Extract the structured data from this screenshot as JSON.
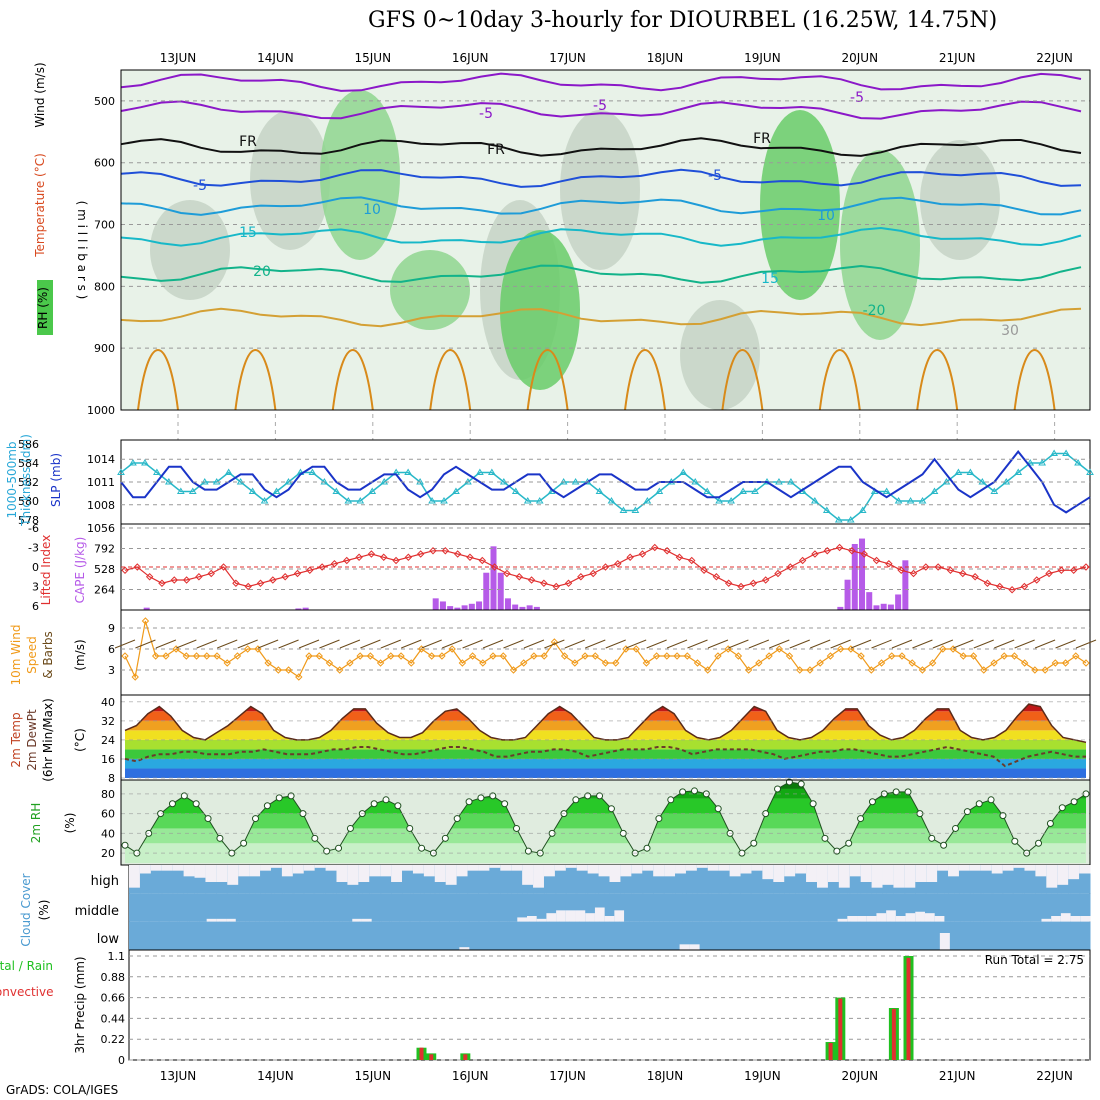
{
  "title": "GFS 0~10day 3-hourly for DIOURBEL (16.25W, 14.75N)",
  "footer": "GrADS: COLA/IGES",
  "date_labels": [
    "13JUN",
    "14JUN",
    "15JUN",
    "16JUN",
    "17JUN",
    "18JUN",
    "19JUN",
    "20JUN",
    "21JUN",
    "22JUN"
  ],
  "panel_labels": {
    "upper": {
      "rh": "RH (%)",
      "temp": "Temperature (°C)",
      "wind": "Wind (m/s)",
      "units": "( m i l l i b a r s )"
    },
    "thickness": {
      "a": "1000-500mb",
      "b": "Thickness (dm)",
      "slp": "SLP (mb)"
    },
    "cape": {
      "li": "Lifted Index",
      "cape": "CAPE (J/kg)"
    },
    "wind10": {
      "a": "10m Wind",
      "b": "Speed",
      "c": "& Barbs",
      "units": "(m/s)"
    },
    "temp2m": {
      "a": "2m Temp",
      "b": "2m DewPt",
      "c": "(6hr Min/Max)",
      "units": "(°C)"
    },
    "rh2m": {
      "a": "2m RH",
      "units": "(%)"
    },
    "cloud": {
      "a": "Cloud Cover",
      "units": "(%)",
      "high": "high",
      "middle": "middle",
      "low": "low"
    },
    "precip": {
      "a": "Total / Rain",
      "b": "Convective",
      "units": "3hr Precip (mm)",
      "run_total": "Run Total = 2.75"
    }
  },
  "chart_data": [
    {
      "type": "heatmap",
      "name_hint": "upper-air cross section",
      "y_axis": {
        "label": "millibars",
        "ticks": [
          500,
          600,
          700,
          800,
          900,
          1000
        ],
        "reversed": true
      },
      "contour_labels": [
        "-5",
        "-5",
        "FR",
        "FR",
        "FR",
        "-5",
        "-5",
        "10",
        "15",
        "20",
        "-5",
        "10",
        "15",
        "-20",
        "30"
      ],
      "isotherms_C": [
        -5,
        0,
        5,
        10,
        15,
        20,
        25,
        30
      ],
      "rh_shading_percent": [
        40,
        60,
        80,
        95
      ]
    },
    {
      "type": "line",
      "name_hint": "thickness and sea level pressure",
      "thickness_axis": {
        "ticks": [
          578,
          580,
          582,
          584,
          586
        ]
      },
      "slp_axis": {
        "ticks": [
          1008,
          1011,
          1014
        ]
      },
      "thickness_dm": [
        583,
        584,
        584,
        583,
        582,
        581,
        581,
        582,
        582,
        583,
        582,
        581,
        580,
        581,
        582,
        583,
        583,
        582,
        581,
        580,
        580,
        581,
        582,
        583,
        583,
        582,
        580,
        580,
        581,
        582,
        583,
        583,
        582,
        581,
        580,
        580,
        581,
        582,
        582,
        582,
        581,
        580,
        579,
        579,
        580,
        581,
        582,
        583,
        582,
        581,
        580,
        580,
        581,
        581,
        582,
        582,
        582,
        581,
        580,
        579,
        578,
        578,
        579,
        581,
        581,
        580,
        580,
        580,
        581,
        582,
        583,
        583,
        582,
        581,
        582,
        583,
        584,
        584,
        585,
        585,
        584,
        583
      ],
      "slp_mb": [
        1011,
        1009,
        1009,
        1011,
        1013,
        1013,
        1011,
        1010,
        1010,
        1011,
        1012,
        1012,
        1010,
        1009,
        1010,
        1012,
        1013,
        1013,
        1011,
        1010,
        1010,
        1011,
        1012,
        1012,
        1010,
        1009,
        1010,
        1012,
        1013,
        1012,
        1011,
        1010,
        1010,
        1011,
        1012,
        1012,
        1010,
        1009,
        1010,
        1011,
        1012,
        1012,
        1011,
        1010,
        1010,
        1011,
        1011,
        1011,
        1010,
        1009,
        1009,
        1010,
        1011,
        1011,
        1011,
        1010,
        1009,
        1010,
        1011,
        1012,
        1013,
        1013,
        1011,
        1010,
        1009,
        1010,
        1011,
        1012,
        1014,
        1012,
        1010,
        1009,
        1010,
        1011,
        1013,
        1015,
        1013,
        1011,
        1008,
        1007,
        1008,
        1009
      ]
    },
    {
      "type": "bar",
      "name_hint": "CAPE and lifted index",
      "cape_axis": {
        "ticks": [
          264,
          528,
          792,
          1056
        ]
      },
      "li_axis": {
        "ticks": [
          -6,
          -3,
          0,
          3,
          6
        ],
        "reversed": true
      },
      "cape_jkg": [
        0,
        0,
        0,
        30,
        0,
        0,
        0,
        0,
        0,
        0,
        0,
        0,
        0,
        0,
        0,
        0,
        0,
        0,
        0,
        0,
        0,
        0,
        0,
        0,
        20,
        30,
        0,
        0,
        0,
        0,
        0,
        0,
        0,
        0,
        0,
        0,
        0,
        0,
        0,
        0,
        0,
        0,
        0,
        150,
        110,
        50,
        30,
        60,
        80,
        110,
        480,
        820,
        480,
        150,
        70,
        40,
        60,
        40,
        0,
        0,
        0,
        0,
        0,
        0,
        0,
        0,
        0,
        0,
        0,
        0,
        0,
        0,
        0,
        0,
        0,
        0,
        0,
        0,
        0,
        0,
        0,
        0,
        0,
        0,
        0,
        0,
        0,
        0,
        0,
        0,
        0,
        0,
        0,
        0,
        0,
        0,
        0,
        0,
        0,
        40,
        390,
        850,
        920,
        230,
        60,
        80,
        70,
        200,
        640,
        0,
        0,
        0,
        0,
        0,
        0,
        0,
        0,
        0,
        0,
        0,
        0,
        0,
        0,
        0,
        0,
        0,
        0,
        0,
        0,
        0,
        0,
        0,
        0,
        0
      ],
      "lifted_index": [
        0.5,
        0,
        1.5,
        2.5,
        2,
        2,
        1.5,
        1,
        0,
        2.5,
        3,
        2.5,
        2,
        1.5,
        1,
        0.5,
        0,
        -0.5,
        -1,
        -1.5,
        -2,
        -1.5,
        -1,
        -1.5,
        -2,
        -2.5,
        -2.5,
        -2,
        -1.5,
        -1,
        0,
        1,
        1.5,
        2,
        2.5,
        3,
        2.5,
        1.5,
        1,
        0,
        -0.5,
        -1.5,
        -2,
        -3,
        -2.5,
        -1.5,
        -1,
        0.5,
        1.5,
        2.5,
        3,
        2.5,
        2,
        1,
        0,
        -1,
        -2,
        -2.5,
        -3,
        -2.5,
        -2,
        -1,
        -0.5,
        0.5,
        1,
        0,
        0,
        0.5,
        1,
        1.5,
        2.5,
        3,
        3.5,
        3,
        2,
        1,
        0.5,
        0.5,
        0
      ]
    },
    {
      "type": "line",
      "name_hint": "10m wind speed",
      "y_axis": {
        "ticks": [
          3,
          6,
          9
        ]
      },
      "speed_ms": [
        5,
        2,
        10,
        5,
        5,
        6,
        5,
        5,
        5,
        5,
        4,
        5,
        6,
        6,
        4,
        3,
        3,
        2,
        5,
        5,
        4,
        3,
        4,
        5,
        5,
        4,
        5,
        5,
        4,
        6,
        5,
        5,
        6,
        4,
        5,
        4,
        5,
        5,
        3,
        4,
        5,
        5,
        7,
        5,
        4,
        5,
        5,
        4,
        4,
        6,
        6,
        4,
        5,
        5,
        5,
        5,
        4,
        3,
        5,
        6,
        5,
        3,
        4,
        5,
        6,
        5,
        3,
        3,
        4,
        5,
        6,
        6,
        5,
        3,
        4,
        5,
        5,
        4,
        3,
        4,
        6,
        6,
        5,
        5,
        3,
        4,
        5,
        5,
        4,
        3,
        3,
        4,
        4,
        5,
        4
      ]
    },
    {
      "type": "area",
      "name_hint": "2m temperature and dewpoint",
      "y_axis": {
        "ticks": [
          8,
          16,
          24,
          32,
          40
        ]
      },
      "temp_C": [
        28,
        30,
        35,
        38,
        34,
        28,
        25,
        24,
        27,
        30,
        34,
        38,
        35,
        28,
        25,
        24,
        24,
        25,
        28,
        33,
        37,
        37,
        31,
        27,
        25,
        25,
        27,
        32,
        36,
        37,
        33,
        28,
        25,
        24,
        24,
        25,
        30,
        35,
        38,
        35,
        30,
        25,
        24,
        24,
        25,
        30,
        35,
        38,
        35,
        28,
        25,
        24,
        25,
        28,
        33,
        38,
        36,
        28,
        25,
        24,
        25,
        28,
        33,
        37,
        37,
        30,
        26,
        24,
        25,
        28,
        33,
        37,
        37,
        28,
        25,
        24,
        25,
        28,
        34,
        39,
        38,
        30,
        25,
        24,
        23
      ],
      "dewpoint_C": [
        16,
        15,
        17,
        18,
        18,
        19,
        19,
        18,
        18,
        18,
        19,
        19,
        20,
        19,
        18,
        18,
        18,
        19,
        20,
        20,
        21,
        21,
        20,
        19,
        18,
        18,
        19,
        20,
        21,
        21,
        20,
        19,
        17,
        17,
        18,
        19,
        19,
        20,
        20,
        19,
        17,
        18,
        19,
        20,
        20,
        20,
        21,
        21,
        20,
        18,
        19,
        20,
        20,
        20,
        20,
        19,
        18,
        16,
        17,
        18,
        19,
        19,
        20,
        20,
        19,
        18,
        17,
        17,
        18,
        19,
        20,
        21,
        20,
        19,
        18,
        17,
        13,
        15,
        17,
        18,
        19,
        18,
        17,
        17
      ]
    },
    {
      "type": "area",
      "name_hint": "2m relative humidity",
      "y_axis": {
        "ticks": [
          20,
          40,
          60,
          80
        ]
      },
      "rh_percent": [
        28,
        20,
        40,
        60,
        70,
        78,
        70,
        55,
        35,
        20,
        30,
        55,
        68,
        76,
        78,
        60,
        35,
        22,
        25,
        45,
        60,
        70,
        74,
        68,
        45,
        25,
        20,
        35,
        55,
        72,
        76,
        78,
        70,
        45,
        22,
        20,
        40,
        60,
        74,
        78,
        78,
        65,
        40,
        20,
        25,
        55,
        74,
        82,
        83,
        80,
        65,
        40,
        20,
        30,
        60,
        85,
        92,
        90,
        70,
        35,
        22,
        30,
        55,
        72,
        80,
        82,
        82,
        60,
        35,
        28,
        45,
        62,
        70,
        74,
        58,
        32,
        20,
        30,
        50,
        66,
        72,
        80
      ]
    },
    {
      "type": "heatmap",
      "name_hint": "cloud cover",
      "levels": [
        "high",
        "middle",
        "low"
      ],
      "high_percent": [
        20,
        70,
        80,
        80,
        80,
        60,
        55,
        40,
        40,
        30,
        60,
        60,
        80,
        90,
        60,
        70,
        80,
        90,
        80,
        40,
        30,
        40,
        60,
        60,
        40,
        80,
        70,
        60,
        40,
        30,
        60,
        80,
        80,
        90,
        80,
        80,
        30,
        20,
        60,
        80,
        90,
        80,
        70,
        60,
        40,
        60,
        70,
        80,
        60,
        60,
        70,
        80,
        90,
        80,
        80,
        60,
        70,
        80,
        50,
        40,
        60,
        70,
        40,
        20,
        40,
        20,
        60,
        40,
        20,
        30,
        20,
        20,
        40,
        40,
        80,
        60,
        80,
        80,
        80,
        70,
        80,
        90,
        80,
        60,
        20,
        30,
        50,
        70
      ],
      "middle_percent": [
        0,
        0,
        0,
        0,
        0,
        0,
        0,
        0,
        10,
        10,
        10,
        0,
        0,
        0,
        0,
        0,
        0,
        0,
        0,
        0,
        0,
        0,
        0,
        10,
        10,
        0,
        0,
        0,
        0,
        0,
        0,
        0,
        0,
        0,
        0,
        0,
        0,
        0,
        0,
        0,
        15,
        20,
        10,
        30,
        40,
        40,
        40,
        30,
        50,
        20,
        40,
        0,
        0,
        0,
        0,
        0,
        0,
        0,
        0,
        0,
        0,
        0,
        0,
        0,
        0,
        0,
        0,
        0,
        0,
        0,
        0,
        0,
        0,
        10,
        20,
        20,
        20,
        30,
        40,
        20,
        30,
        35,
        30,
        20,
        0,
        0,
        0,
        0,
        0,
        0,
        0,
        0,
        0,
        0,
        10,
        20,
        30,
        20,
        20
      ],
      "low_percent": [
        0,
        0,
        0,
        0,
        0,
        0,
        0,
        0,
        0,
        0,
        0,
        0,
        0,
        0,
        0,
        0,
        0,
        0,
        0,
        0,
        0,
        0,
        0,
        0,
        0,
        0,
        0,
        0,
        0,
        0,
        0,
        0,
        0,
        10,
        0,
        0,
        0,
        0,
        0,
        0,
        0,
        0,
        0,
        0,
        0,
        0,
        0,
        0,
        0,
        0,
        0,
        0,
        0,
        0,
        0,
        20,
        20,
        0,
        0,
        0,
        0,
        0,
        0,
        0,
        0,
        0,
        0,
        0,
        0,
        0,
        0,
        0,
        0,
        0,
        0,
        0,
        0,
        0,
        0,
        0,
        0,
        60,
        0,
        0,
        0,
        0,
        0,
        0,
        0,
        0,
        0,
        0,
        0,
        0,
        0,
        0
      ]
    },
    {
      "type": "bar",
      "name_hint": "3hr precipitation",
      "y_axis": {
        "ticks": [
          0,
          0.22,
          0.44,
          0.66,
          0.88,
          1.1
        ]
      },
      "bars": [
        {
          "date_index": 2.5,
          "total_mm": 0.13,
          "convective_mm": 0.13
        },
        {
          "date_index": 2.6,
          "total_mm": 0.07,
          "convective_mm": 0.06
        },
        {
          "date_index": 2.95,
          "total_mm": 0.07,
          "convective_mm": 0.06
        },
        {
          "date_index": 6.7,
          "total_mm": 0.19,
          "convective_mm": 0.18
        },
        {
          "date_index": 6.8,
          "total_mm": 0.66,
          "convective_mm": 0.65
        },
        {
          "date_index": 7.35,
          "total_mm": 0.55,
          "convective_mm": 0.54
        },
        {
          "date_index": 7.5,
          "total_mm": 1.1,
          "convective_mm": 1.08
        }
      ]
    }
  ]
}
